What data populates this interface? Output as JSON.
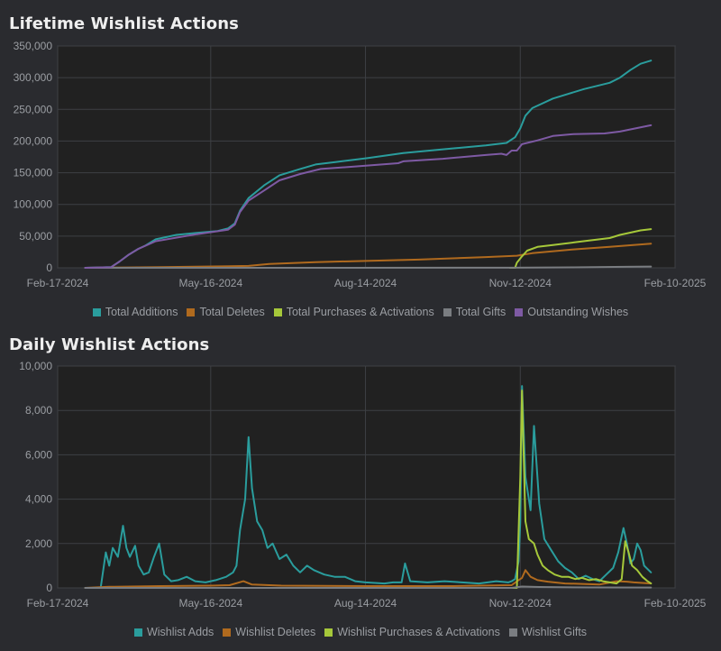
{
  "chart_data": [
    {
      "type": "line",
      "title": "Lifetime Wishlist Actions",
      "xlabel": "",
      "ylabel": "",
      "x_tick_labels": [
        "Feb-17-2024",
        "May-16-2024",
        "Aug-14-2024",
        "Nov-12-2024",
        "Feb-10-2025"
      ],
      "x_tick_days": [
        0,
        89,
        179,
        269,
        359
      ],
      "x_domain_days": [
        0,
        359
      ],
      "ylim": [
        0,
        350000
      ],
      "y_ticks": [
        0,
        50000,
        100000,
        150000,
        200000,
        250000,
        300000,
        350000
      ],
      "y_tick_labels": [
        "0",
        "50,000",
        "100,000",
        "150,000",
        "200,000",
        "250,000",
        "300,000",
        "350,000"
      ],
      "grid": true,
      "legend_position": "bottom",
      "series": [
        {
          "name": "Total Additions",
          "color": "#2a9d9d",
          "points": [
            [
              16,
              0
            ],
            [
              31,
              1000
            ],
            [
              36,
              10000
            ],
            [
              41,
              20000
            ],
            [
              47,
              30000
            ],
            [
              51,
              35000
            ],
            [
              57,
              45000
            ],
            [
              69,
              52000
            ],
            [
              81,
              55000
            ],
            [
              93,
              58000
            ],
            [
              99,
              62000
            ],
            [
              103,
              70000
            ],
            [
              106,
              90000
            ],
            [
              111,
              110000
            ],
            [
              120,
              130000
            ],
            [
              129,
              146000
            ],
            [
              141,
              156000
            ],
            [
              150,
              163000
            ],
            [
              162,
              167000
            ],
            [
              180,
              173000
            ],
            [
              201,
              181000
            ],
            [
              224,
              187000
            ],
            [
              249,
              193000
            ],
            [
              261,
              197000
            ],
            [
              266,
              206000
            ],
            [
              269,
              220000
            ],
            [
              272,
              240000
            ],
            [
              276,
              252000
            ],
            [
              288,
              267000
            ],
            [
              306,
              282000
            ],
            [
              321,
              292000
            ],
            [
              327,
              300000
            ],
            [
              333,
              312000
            ],
            [
              339,
              322000
            ],
            [
              345,
              327000
            ]
          ]
        },
        {
          "name": "Total Deletes",
          "color": "#b06a1e",
          "points": [
            [
              16,
              0
            ],
            [
              60,
              1000
            ],
            [
              111,
              3000
            ],
            [
              123,
              6000
            ],
            [
              150,
              9000
            ],
            [
              210,
              13000
            ],
            [
              249,
              17000
            ],
            [
              267,
              19000
            ],
            [
              276,
              23000
            ],
            [
              300,
              29000
            ],
            [
              321,
              33000
            ],
            [
              345,
              38000
            ]
          ]
        },
        {
          "name": "Total Purchases & Activations",
          "color": "#a6c83a",
          "points": [
            [
              263,
              0
            ],
            [
              266,
              0
            ],
            [
              267,
              8000
            ],
            [
              270,
              18000
            ],
            [
              273,
              27000
            ],
            [
              279,
              33000
            ],
            [
              288,
              36000
            ],
            [
              300,
              40000
            ],
            [
              309,
              43000
            ],
            [
              321,
              47000
            ],
            [
              327,
              52000
            ],
            [
              339,
              59000
            ],
            [
              345,
              61000
            ]
          ]
        },
        {
          "name": "Total Gifts",
          "color": "#7a7d81",
          "points": [
            [
              16,
              0
            ],
            [
              264,
              200
            ],
            [
              300,
              700
            ],
            [
              330,
              1500
            ],
            [
              345,
              2000
            ]
          ]
        },
        {
          "name": "Outstanding Wishes",
          "color": "#7e5aa4",
          "points": [
            [
              16,
              0
            ],
            [
              31,
              1000
            ],
            [
              36,
              10000
            ],
            [
              41,
              20000
            ],
            [
              47,
              30000
            ],
            [
              57,
              42000
            ],
            [
              81,
              53000
            ],
            [
              99,
              60000
            ],
            [
              103,
              68000
            ],
            [
              106,
              88000
            ],
            [
              111,
              106000
            ],
            [
              120,
              122000
            ],
            [
              129,
              138000
            ],
            [
              141,
              148000
            ],
            [
              153,
              156000
            ],
            [
              174,
              160000
            ],
            [
              198,
              165000
            ],
            [
              201,
              168000
            ],
            [
              224,
              172000
            ],
            [
              249,
              178000
            ],
            [
              258,
              180000
            ],
            [
              261,
              178000
            ],
            [
              264,
              185000
            ],
            [
              267,
              185000
            ],
            [
              270,
              195000
            ],
            [
              279,
              201000
            ],
            [
              288,
              208000
            ],
            [
              300,
              211000
            ],
            [
              318,
              212000
            ],
            [
              327,
              215000
            ],
            [
              345,
              225000
            ]
          ]
        }
      ]
    },
    {
      "type": "line",
      "title": "Daily Wishlist Actions",
      "xlabel": "",
      "ylabel": "",
      "x_tick_labels": [
        "Feb-17-2024",
        "May-16-2024",
        "Aug-14-2024",
        "Nov-12-2024",
        "Feb-10-2025"
      ],
      "x_tick_days": [
        0,
        89,
        179,
        269,
        359
      ],
      "x_domain_days": [
        0,
        359
      ],
      "ylim": [
        0,
        10000
      ],
      "y_ticks": [
        0,
        2000,
        4000,
        6000,
        8000,
        10000
      ],
      "y_tick_labels": [
        "0",
        "2,000",
        "4,000",
        "6,000",
        "8,000",
        "10,000"
      ],
      "grid": true,
      "legend_position": "bottom",
      "series": [
        {
          "name": "Wishlist Adds",
          "color": "#2a9d9d",
          "points": [
            [
              16,
              0
            ],
            [
              25,
              0
            ],
            [
              28,
              1600
            ],
            [
              30,
              1000
            ],
            [
              32,
              1800
            ],
            [
              35,
              1400
            ],
            [
              38,
              2800
            ],
            [
              40,
              1800
            ],
            [
              42,
              1400
            ],
            [
              45,
              1900
            ],
            [
              47,
              1000
            ],
            [
              50,
              600
            ],
            [
              53,
              700
            ],
            [
              56,
              1400
            ],
            [
              59,
              2000
            ],
            [
              62,
              600
            ],
            [
              66,
              300
            ],
            [
              70,
              350
            ],
            [
              75,
              500
            ],
            [
              80,
              300
            ],
            [
              86,
              250
            ],
            [
              92,
              350
            ],
            [
              98,
              500
            ],
            [
              102,
              700
            ],
            [
              104,
              1000
            ],
            [
              106,
              2600
            ],
            [
              109,
              4000
            ],
            [
              111,
              6800
            ],
            [
              113,
              4500
            ],
            [
              116,
              3000
            ],
            [
              119,
              2600
            ],
            [
              122,
              1800
            ],
            [
              125,
              2000
            ],
            [
              129,
              1300
            ],
            [
              133,
              1500
            ],
            [
              137,
              1000
            ],
            [
              141,
              700
            ],
            [
              145,
              1000
            ],
            [
              149,
              800
            ],
            [
              155,
              600
            ],
            [
              161,
              500
            ],
            [
              167,
              500
            ],
            [
              173,
              300
            ],
            [
              179,
              250
            ],
            [
              190,
              200
            ],
            [
              195,
              250
            ],
            [
              200,
              250
            ],
            [
              202,
              1100
            ],
            [
              205,
              300
            ],
            [
              215,
              250
            ],
            [
              225,
              300
            ],
            [
              235,
              250
            ],
            [
              245,
              200
            ],
            [
              255,
              300
            ],
            [
              262,
              250
            ],
            [
              264,
              300
            ],
            [
              266,
              400
            ],
            [
              268,
              1200
            ],
            [
              269,
              3000
            ],
            [
              270,
              9100
            ],
            [
              272,
              5000
            ],
            [
              275,
              3500
            ],
            [
              277,
              7300
            ],
            [
              280,
              3800
            ],
            [
              283,
              2200
            ],
            [
              287,
              1700
            ],
            [
              291,
              1200
            ],
            [
              295,
              900
            ],
            [
              299,
              700
            ],
            [
              303,
              400
            ],
            [
              307,
              550
            ],
            [
              311,
              400
            ],
            [
              315,
              300
            ],
            [
              319,
              600
            ],
            [
              323,
              900
            ],
            [
              326,
              1600
            ],
            [
              329,
              2700
            ],
            [
              331,
              2000
            ],
            [
              333,
              1100
            ],
            [
              335,
              1300
            ],
            [
              337,
              2000
            ],
            [
              339,
              1700
            ],
            [
              341,
              1000
            ],
            [
              345,
              700
            ]
          ]
        },
        {
          "name": "Wishlist Deletes",
          "color": "#b06a1e",
          "points": [
            [
              16,
              0
            ],
            [
              30,
              50
            ],
            [
              60,
              80
            ],
            [
              90,
              100
            ],
            [
              100,
              120
            ],
            [
              108,
              300
            ],
            [
              113,
              150
            ],
            [
              130,
              100
            ],
            [
              180,
              80
            ],
            [
              230,
              80
            ],
            [
              264,
              120
            ],
            [
              268,
              350
            ],
            [
              270,
              450
            ],
            [
              272,
              800
            ],
            [
              275,
              500
            ],
            [
              279,
              350
            ],
            [
              285,
              280
            ],
            [
              295,
              200
            ],
            [
              305,
              180
            ],
            [
              315,
              150
            ],
            [
              325,
              300
            ],
            [
              331,
              280
            ],
            [
              335,
              250
            ],
            [
              345,
              200
            ]
          ]
        },
        {
          "name": "Wishlist Purchases & Activations",
          "color": "#a6c83a",
          "points": [
            [
              263,
              0
            ],
            [
              267,
              0
            ],
            [
              269,
              5000
            ],
            [
              270,
              8900
            ],
            [
              272,
              3000
            ],
            [
              274,
              2200
            ],
            [
              277,
              2000
            ],
            [
              279,
              1500
            ],
            [
              282,
              1000
            ],
            [
              285,
              800
            ],
            [
              289,
              600
            ],
            [
              293,
              500
            ],
            [
              297,
              500
            ],
            [
              301,
              400
            ],
            [
              305,
              450
            ],
            [
              309,
              350
            ],
            [
              313,
              400
            ],
            [
              317,
              300
            ],
            [
              321,
              250
            ],
            [
              325,
              200
            ],
            [
              328,
              400
            ],
            [
              330,
              2100
            ],
            [
              332,
              1600
            ],
            [
              334,
              1000
            ],
            [
              337,
              800
            ],
            [
              340,
              500
            ],
            [
              343,
              300
            ],
            [
              345,
              200
            ]
          ]
        },
        {
          "name": "Wishlist Gifts",
          "color": "#7a7d81",
          "points": [
            [
              16,
              0
            ],
            [
              264,
              0
            ],
            [
              266,
              20
            ],
            [
              270,
              60
            ],
            [
              280,
              40
            ],
            [
              310,
              20
            ],
            [
              345,
              15
            ]
          ]
        }
      ]
    }
  ]
}
